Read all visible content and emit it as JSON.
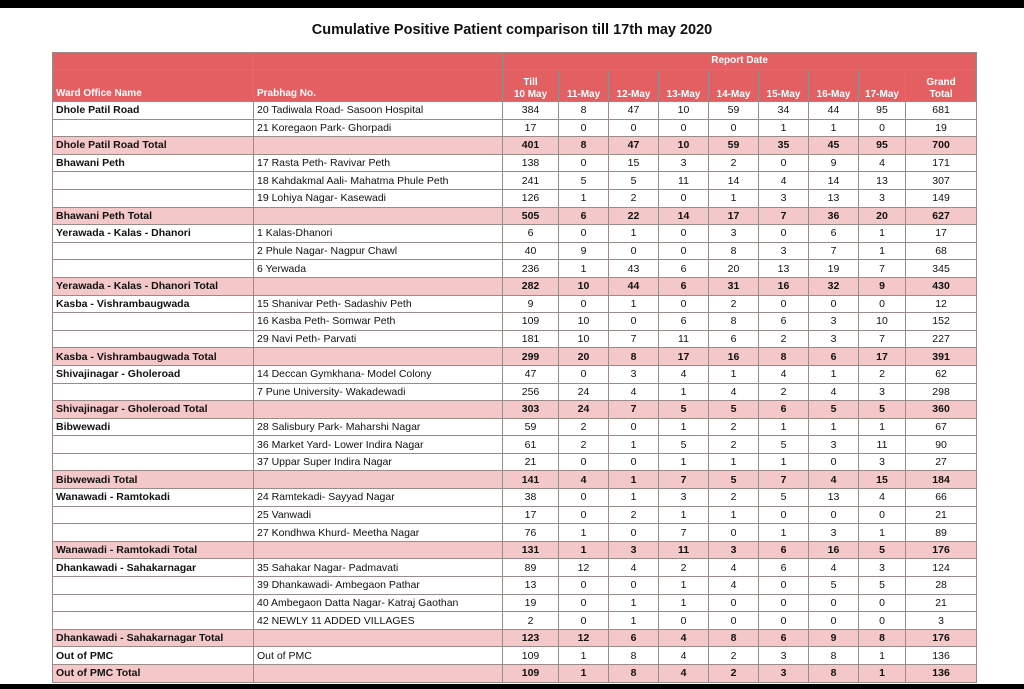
{
  "title": "Cumulative Positive Patient comparison till 17th may 2020",
  "group_header": "Report Date",
  "columns": {
    "ward": "Ward Office Name",
    "prabhag": "Prabhag No.",
    "till_a": "Till",
    "till_b": "10 May",
    "d11": "11-May",
    "d12": "12-May",
    "d13": "13-May",
    "d14": "14-May",
    "d15": "15-May",
    "d16": "16-May",
    "d17": "17-May",
    "grand_a": "Grand",
    "grand_b": "Total"
  },
  "rows": [
    {
      "ward": "Dhole Patil Road",
      "prabhag": "20 Tadiwala Road- Sasoon Hospital",
      "v": [
        "384",
        "8",
        "47",
        "10",
        "59",
        "34",
        "44",
        "95",
        "681"
      ]
    },
    {
      "ward": "",
      "prabhag": "21 Koregaon Park- Ghorpadi",
      "v": [
        "17",
        "0",
        "0",
        "0",
        "0",
        "1",
        "1",
        "0",
        "19"
      ]
    },
    {
      "ward": "Dhole Patil Road Total",
      "prabhag": "",
      "v": [
        "401",
        "8",
        "47",
        "10",
        "59",
        "35",
        "45",
        "95",
        "700"
      ],
      "total": true
    },
    {
      "ward": "Bhawani Peth",
      "prabhag": "17 Rasta Peth- Ravivar Peth",
      "v": [
        "138",
        "0",
        "15",
        "3",
        "2",
        "0",
        "9",
        "4",
        "171"
      ]
    },
    {
      "ward": "",
      "prabhag": "18 Kahdakmal Aali- Mahatma Phule Peth",
      "v": [
        "241",
        "5",
        "5",
        "11",
        "14",
        "4",
        "14",
        "13",
        "307"
      ]
    },
    {
      "ward": "",
      "prabhag": "19 Lohiya Nagar- Kasewadi",
      "v": [
        "126",
        "1",
        "2",
        "0",
        "1",
        "3",
        "13",
        "3",
        "149"
      ]
    },
    {
      "ward": "Bhawani Peth Total",
      "prabhag": "",
      "v": [
        "505",
        "6",
        "22",
        "14",
        "17",
        "7",
        "36",
        "20",
        "627"
      ],
      "total": true
    },
    {
      "ward": "Yerawada - Kalas - Dhanori",
      "prabhag": "1 Kalas-Dhanori",
      "v": [
        "6",
        "0",
        "1",
        "0",
        "3",
        "0",
        "6",
        "1",
        "17"
      ]
    },
    {
      "ward": "",
      "prabhag": "2 Phule Nagar- Nagpur Chawl",
      "v": [
        "40",
        "9",
        "0",
        "0",
        "8",
        "3",
        "7",
        "1",
        "68"
      ]
    },
    {
      "ward": "",
      "prabhag": "6 Yerwada",
      "v": [
        "236",
        "1",
        "43",
        "6",
        "20",
        "13",
        "19",
        "7",
        "345"
      ]
    },
    {
      "ward": "Yerawada - Kalas - Dhanori Total",
      "prabhag": "",
      "v": [
        "282",
        "10",
        "44",
        "6",
        "31",
        "16",
        "32",
        "9",
        "430"
      ],
      "total": true
    },
    {
      "ward": "Kasba - Vishrambaugwada",
      "prabhag": "15 Shanivar Peth- Sadashiv Peth",
      "v": [
        "9",
        "0",
        "1",
        "0",
        "2",
        "0",
        "0",
        "0",
        "12"
      ]
    },
    {
      "ward": "",
      "prabhag": "16 Kasba Peth- Somwar Peth",
      "v": [
        "109",
        "10",
        "0",
        "6",
        "8",
        "6",
        "3",
        "10",
        "152"
      ]
    },
    {
      "ward": "",
      "prabhag": "29 Navi Peth- Parvati",
      "v": [
        "181",
        "10",
        "7",
        "11",
        "6",
        "2",
        "3",
        "7",
        "227"
      ]
    },
    {
      "ward": "Kasba - Vishrambaugwada Total",
      "prabhag": "",
      "v": [
        "299",
        "20",
        "8",
        "17",
        "16",
        "8",
        "6",
        "17",
        "391"
      ],
      "total": true
    },
    {
      "ward": "Shivajinagar - Gholeroad",
      "prabhag": "14 Deccan Gymkhana- Model Colony",
      "v": [
        "47",
        "0",
        "3",
        "4",
        "1",
        "4",
        "1",
        "2",
        "62"
      ]
    },
    {
      "ward": "",
      "prabhag": "7 Pune University- Wakadewadi",
      "v": [
        "256",
        "24",
        "4",
        "1",
        "4",
        "2",
        "4",
        "3",
        "298"
      ]
    },
    {
      "ward": "Shivajinagar - Gholeroad Total",
      "prabhag": "",
      "v": [
        "303",
        "24",
        "7",
        "5",
        "5",
        "6",
        "5",
        "5",
        "360"
      ],
      "total": true
    },
    {
      "ward": "Bibwewadi",
      "prabhag": "28 Salisbury Park- Maharshi Nagar",
      "v": [
        "59",
        "2",
        "0",
        "1",
        "2",
        "1",
        "1",
        "1",
        "67"
      ]
    },
    {
      "ward": "",
      "prabhag": "36 Market Yard- Lower Indira Nagar",
      "v": [
        "61",
        "2",
        "1",
        "5",
        "2",
        "5",
        "3",
        "11",
        "90"
      ]
    },
    {
      "ward": "",
      "prabhag": "37 Uppar Super Indira Nagar",
      "v": [
        "21",
        "0",
        "0",
        "1",
        "1",
        "1",
        "0",
        "3",
        "27"
      ]
    },
    {
      "ward": "Bibwewadi Total",
      "prabhag": "",
      "v": [
        "141",
        "4",
        "1",
        "7",
        "5",
        "7",
        "4",
        "15",
        "184"
      ],
      "total": true
    },
    {
      "ward": "Wanawadi - Ramtokadi",
      "prabhag": "24 Ramtekadi- Sayyad Nagar",
      "v": [
        "38",
        "0",
        "1",
        "3",
        "2",
        "5",
        "13",
        "4",
        "66"
      ]
    },
    {
      "ward": "",
      "prabhag": "25 Vanwadi",
      "v": [
        "17",
        "0",
        "2",
        "1",
        "1",
        "0",
        "0",
        "0",
        "21"
      ]
    },
    {
      "ward": "",
      "prabhag": "27 Kondhwa Khurd- Meetha Nagar",
      "v": [
        "76",
        "1",
        "0",
        "7",
        "0",
        "1",
        "3",
        "1",
        "89"
      ]
    },
    {
      "ward": "Wanawadi - Ramtokadi Total",
      "prabhag": "",
      "v": [
        "131",
        "1",
        "3",
        "11",
        "3",
        "6",
        "16",
        "5",
        "176"
      ],
      "total": true
    },
    {
      "ward": "Dhankawadi - Sahakarnagar",
      "prabhag": "35 Sahakar Nagar- Padmavati",
      "v": [
        "89",
        "12",
        "4",
        "2",
        "4",
        "6",
        "4",
        "3",
        "124"
      ]
    },
    {
      "ward": "",
      "prabhag": "39 Dhankawadi- Ambegaon Pathar",
      "v": [
        "13",
        "0",
        "0",
        "1",
        "4",
        "0",
        "5",
        "5",
        "28"
      ]
    },
    {
      "ward": "",
      "prabhag": "40 Ambegaon Datta Nagar- Katraj Gaothan",
      "v": [
        "19",
        "0",
        "1",
        "1",
        "0",
        "0",
        "0",
        "0",
        "21"
      ]
    },
    {
      "ward": "",
      "prabhag": "42 NEWLY 11 ADDED VILLAGES",
      "v": [
        "2",
        "0",
        "1",
        "0",
        "0",
        "0",
        "0",
        "0",
        "3"
      ]
    },
    {
      "ward": "Dhankawadi - Sahakarnagar Total",
      "prabhag": "",
      "v": [
        "123",
        "12",
        "6",
        "4",
        "8",
        "6",
        "9",
        "8",
        "176"
      ],
      "total": true
    },
    {
      "ward": "Out of PMC",
      "prabhag": "Out of PMC",
      "v": [
        "109",
        "1",
        "8",
        "4",
        "2",
        "3",
        "8",
        "1",
        "136"
      ]
    },
    {
      "ward": "Out of PMC Total",
      "prabhag": "",
      "v": [
        "109",
        "1",
        "8",
        "4",
        "2",
        "3",
        "8",
        "1",
        "136"
      ],
      "total": true
    }
  ]
}
